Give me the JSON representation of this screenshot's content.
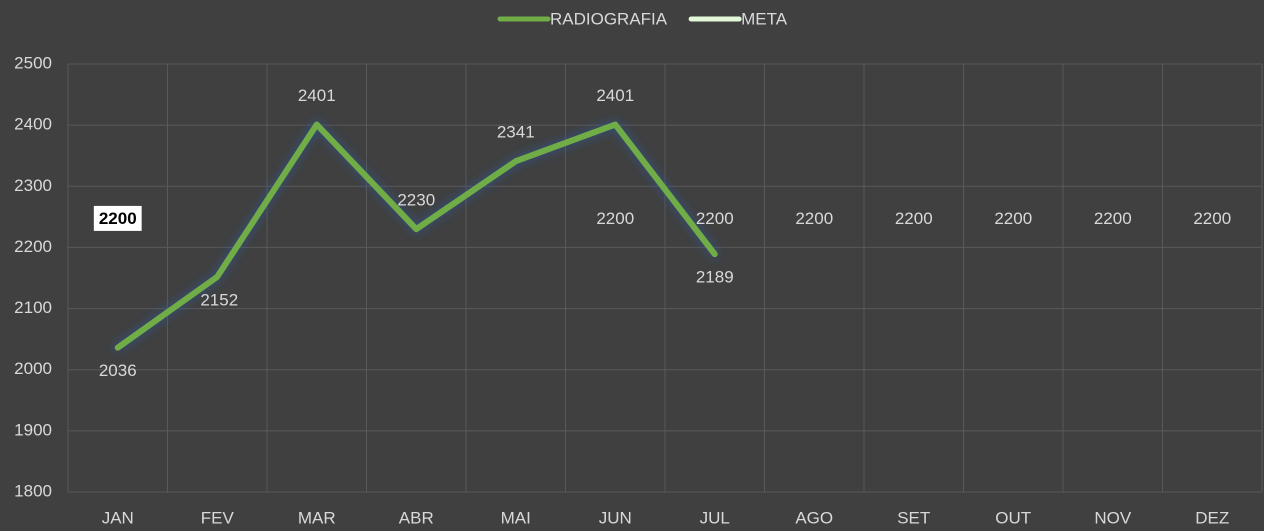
{
  "chart_data": {
    "type": "line",
    "categories": [
      "JAN",
      "FEV",
      "MAR",
      "ABR",
      "MAI",
      "JUN",
      "JUL",
      "AGO",
      "SET",
      "OUT",
      "NOV",
      "DEZ"
    ],
    "series": [
      {
        "name": "RADIOGRAFIA",
        "color": "#70ad47",
        "values": [
          2036,
          2152,
          2401,
          2230,
          2341,
          2401,
          2189,
          null,
          null,
          null,
          null,
          null
        ]
      },
      {
        "name": "META",
        "color": "#e2f8d8",
        "values": [
          2200,
          2200,
          2200,
          2200,
          2200,
          2200,
          2200,
          2200,
          2200,
          2200,
          2200,
          2200
        ],
        "value_labels": [
          "2200",
          null,
          null,
          null,
          null,
          "2200",
          "2200",
          "2200",
          "2200",
          "2200",
          "2200",
          "2200"
        ]
      }
    ],
    "ylim": [
      1800,
      2500
    ],
    "yticks": [
      1800,
      1900,
      2000,
      2100,
      2200,
      2300,
      2400,
      2500
    ],
    "grid": true,
    "legend": "top"
  }
}
